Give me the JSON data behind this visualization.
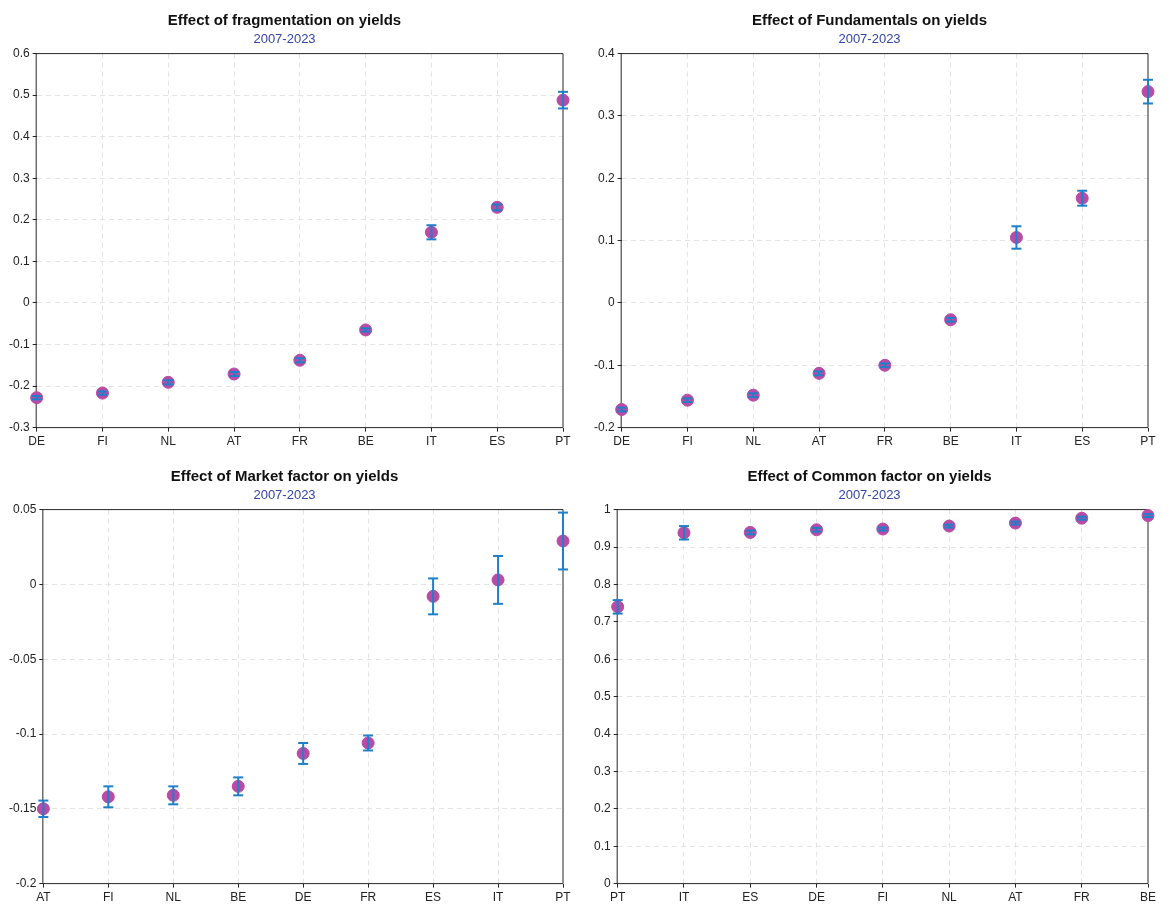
{
  "chart_data": [
    {
      "type": "scatter",
      "title": "Effect of fragmentation on yields",
      "subtitle": "2007-2023",
      "categories": [
        "DE",
        "FI",
        "NL",
        "AT",
        "FR",
        "BE",
        "IT",
        "ES",
        "PT"
      ],
      "series": [
        {
          "color": "#b94aa6",
          "values": [
            -0.228,
            -0.217,
            -0.191,
            -0.171,
            -0.138,
            -0.065,
            0.17,
            0.23,
            0.488
          ],
          "errors": [
            0.004,
            0.004,
            0.005,
            0.005,
            0.005,
            0.004,
            0.017,
            0.007,
            0.02
          ]
        }
      ],
      "ylim": [
        -0.3,
        0.6
      ],
      "yticks": [
        -0.3,
        -0.2,
        -0.1,
        0,
        0.1,
        0.2,
        0.3,
        0.4,
        0.5,
        0.6
      ],
      "grid": true,
      "marker": "circle"
    },
    {
      "type": "scatter",
      "title": "Effect of Fundamentals on yields",
      "subtitle": "2007-2023",
      "categories": [
        "DE",
        "FI",
        "NL",
        "AT",
        "FR",
        "BE",
        "IT",
        "ES",
        "PT"
      ],
      "series": [
        {
          "color": "#b94aa6",
          "values": [
            -0.171,
            -0.156,
            -0.148,
            -0.113,
            -0.1,
            -0.027,
            0.105,
            0.168,
            0.339
          ],
          "errors": [
            0.003,
            0.003,
            0.003,
            0.003,
            0.003,
            0.003,
            0.018,
            0.012,
            0.019
          ]
        }
      ],
      "ylim": [
        -0.2,
        0.4
      ],
      "yticks": [
        -0.2,
        -0.1,
        0,
        0.1,
        0.2,
        0.3,
        0.4
      ],
      "grid": true,
      "marker": "circle"
    },
    {
      "type": "scatter",
      "title": "Effect of Market factor on yields",
      "subtitle": "2007-2023",
      "categories": [
        "AT",
        "FI",
        "NL",
        "BE",
        "DE",
        "FR",
        "ES",
        "IT",
        "PT"
      ],
      "series": [
        {
          "color": "#b94aa6",
          "values": [
            -0.15,
            -0.142,
            -0.141,
            -0.135,
            -0.113,
            -0.106,
            -0.008,
            0.003,
            0.029
          ],
          "errors": [
            0.0055,
            0.007,
            0.006,
            0.006,
            0.007,
            0.005,
            0.012,
            0.016,
            0.019
          ]
        }
      ],
      "ylim": [
        -0.2,
        0.05
      ],
      "yticks": [
        -0.2,
        -0.15,
        -0.1,
        -0.05,
        0,
        0.05
      ],
      "grid": true,
      "marker": "circle"
    },
    {
      "type": "scatter",
      "title": "Effect of Common factor on yields",
      "subtitle": "2007-2023",
      "categories": [
        "PT",
        "IT",
        "ES",
        "DE",
        "FI",
        "NL",
        "AT",
        "FR",
        "BE"
      ],
      "series": [
        {
          "color": "#b94aa6",
          "values": [
            0.74,
            0.938,
            0.939,
            0.946,
            0.948,
            0.956,
            0.964,
            0.977,
            0.984
          ],
          "errors": [
            0.018,
            0.018,
            0.005,
            0.005,
            0.004,
            0.004,
            0.004,
            0.004,
            0.004
          ]
        }
      ],
      "ylim": [
        0,
        1
      ],
      "yticks": [
        0,
        0.1,
        0.2,
        0.3,
        0.4,
        0.5,
        0.6,
        0.7,
        0.8,
        0.9,
        1
      ],
      "grid": true,
      "marker": "circle"
    }
  ]
}
